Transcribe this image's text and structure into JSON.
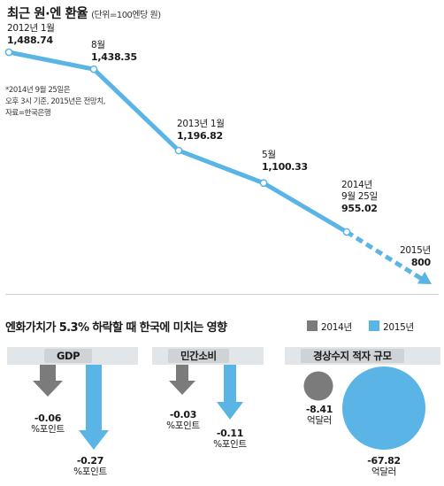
{
  "header": {
    "title": "최근 원·엔 환율",
    "unit": "(단위=100엔당 원)"
  },
  "note_lines": [
    "*2014년 9월 25일은",
    "오후 3시 기준, 2015년은 전망치,",
    "자료=한국은행"
  ],
  "chart_data": [
    {
      "type": "line",
      "title": "최근 원·엔 환율",
      "unit": "(단위=100엔당 원)",
      "points": [
        {
          "label": "2012년 1월",
          "value": 1488.74,
          "value_text": "1,488.74",
          "projected": false
        },
        {
          "label": "8월",
          "value": 1438.35,
          "value_text": "1,438.35",
          "projected": false
        },
        {
          "label": "2013년 1월",
          "value": 1196.82,
          "value_text": "1,196.82",
          "projected": false
        },
        {
          "label": "5월",
          "value": 1100.33,
          "value_text": "1,100.33",
          "projected": false
        },
        {
          "label": "2014년 9월 25일",
          "label_lines": [
            "2014년",
            "9월 25일"
          ],
          "value": 955.02,
          "value_text": "955.02",
          "projected": false
        },
        {
          "label": "2015년",
          "value": 800,
          "value_text": "800",
          "projected": true
        }
      ]
    },
    {
      "type": "bar",
      "title": "엔화가치가 5.3% 하락할 때 한국에 미치는 영향",
      "series_names": [
        "2014년",
        "2015년"
      ],
      "colors": {
        "2014년": "#7b7b7b",
        "2015년": "#5ab4e6"
      },
      "groups": [
        {
          "name": "GDP",
          "unit": "%포인트",
          "values": [
            -0.06,
            -0.27
          ],
          "value_texts": [
            "-0.06",
            "-0.27"
          ]
        },
        {
          "name": "민간소비",
          "unit": "%포인트",
          "values": [
            -0.03,
            -0.11
          ],
          "value_texts": [
            "-0.03",
            "-0.11"
          ]
        },
        {
          "name": "경상수지 적자 규모",
          "unit": "억달러",
          "values": [
            -8.41,
            -67.82
          ],
          "value_texts": [
            "-8.41",
            "-67.82"
          ]
        }
      ]
    }
  ],
  "colors": {
    "line": "#5ab4e6",
    "gray": "#7b7b7b",
    "band": "#e3e6e8",
    "band_label": "#cfd3d6"
  }
}
